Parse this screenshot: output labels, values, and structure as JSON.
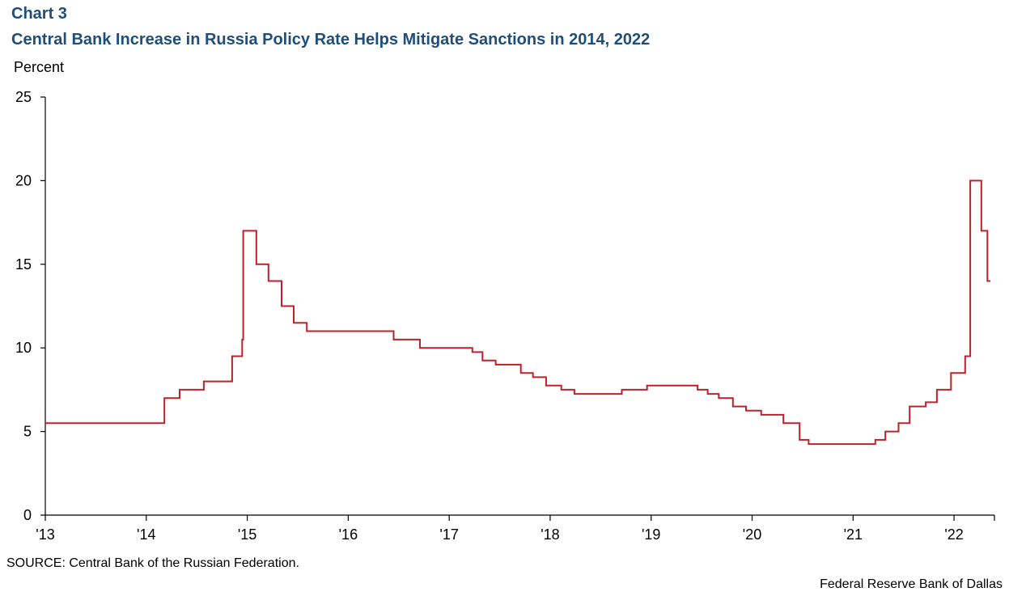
{
  "header": {
    "chart_number": "Chart 3",
    "title": "Central Bank Increase in Russia Policy Rate Helps Mitigate Sanctions in 2014, 2022",
    "y_unit": "Percent"
  },
  "footer": {
    "source": "SOURCE: Central Bank of the Russian Federation.",
    "credit": "Federal Reserve Bank of Dallas"
  },
  "colors": {
    "title": "#1f4e79",
    "series": "#c0202a",
    "axis": "#000000"
  },
  "chart_data": {
    "type": "line",
    "title": "Central Bank Increase in Russia Policy Rate Helps Mitigate Sanctions in 2014, 2022",
    "ylabel": "Percent",
    "xlabel": "",
    "ylim": [
      0,
      25
    ],
    "xlim": [
      2013.0,
      2022.4
    ],
    "y_ticks": [
      0,
      5,
      10,
      15,
      20,
      25
    ],
    "x_ticks": [
      {
        "value": 2013,
        "label": "'13"
      },
      {
        "value": 2014,
        "label": "'14"
      },
      {
        "value": 2015,
        "label": "'15"
      },
      {
        "value": 2016,
        "label": "'16"
      },
      {
        "value": 2017,
        "label": "'17"
      },
      {
        "value": 2018,
        "label": "'18"
      },
      {
        "value": 2019,
        "label": "'19"
      },
      {
        "value": 2020,
        "label": "'20"
      },
      {
        "value": 2021,
        "label": "'21"
      },
      {
        "value": 2022,
        "label": "'22"
      }
    ],
    "grid": false,
    "legend": "none",
    "series": [
      {
        "step": true,
        "points": [
          [
            2013.0,
            5.5
          ],
          [
            2014.18,
            7.0
          ],
          [
            2014.33,
            7.5
          ],
          [
            2014.57,
            8.0
          ],
          [
            2014.85,
            9.5
          ],
          [
            2014.95,
            10.5
          ],
          [
            2014.96,
            17.0
          ],
          [
            2015.09,
            15.0
          ],
          [
            2015.21,
            14.0
          ],
          [
            2015.34,
            12.5
          ],
          [
            2015.46,
            11.5
          ],
          [
            2015.59,
            11.0
          ],
          [
            2016.45,
            10.5
          ],
          [
            2016.71,
            10.0
          ],
          [
            2017.23,
            9.75
          ],
          [
            2017.33,
            9.25
          ],
          [
            2017.46,
            9.0
          ],
          [
            2017.71,
            8.5
          ],
          [
            2017.83,
            8.25
          ],
          [
            2017.96,
            7.75
          ],
          [
            2018.11,
            7.5
          ],
          [
            2018.24,
            7.25
          ],
          [
            2018.71,
            7.5
          ],
          [
            2018.96,
            7.75
          ],
          [
            2019.46,
            7.5
          ],
          [
            2019.56,
            7.25
          ],
          [
            2019.67,
            7.0
          ],
          [
            2019.81,
            6.5
          ],
          [
            2019.94,
            6.25
          ],
          [
            2020.09,
            6.0
          ],
          [
            2020.31,
            5.5
          ],
          [
            2020.47,
            4.5
          ],
          [
            2020.56,
            4.25
          ],
          [
            2021.22,
            4.5
          ],
          [
            2021.32,
            5.0
          ],
          [
            2021.45,
            5.5
          ],
          [
            2021.56,
            6.5
          ],
          [
            2021.72,
            6.75
          ],
          [
            2021.83,
            7.5
          ],
          [
            2021.97,
            8.5
          ],
          [
            2022.11,
            9.5
          ],
          [
            2022.16,
            20.0
          ],
          [
            2022.27,
            17.0
          ],
          [
            2022.33,
            14.0
          ],
          [
            2022.36,
            14.0
          ]
        ]
      }
    ]
  }
}
